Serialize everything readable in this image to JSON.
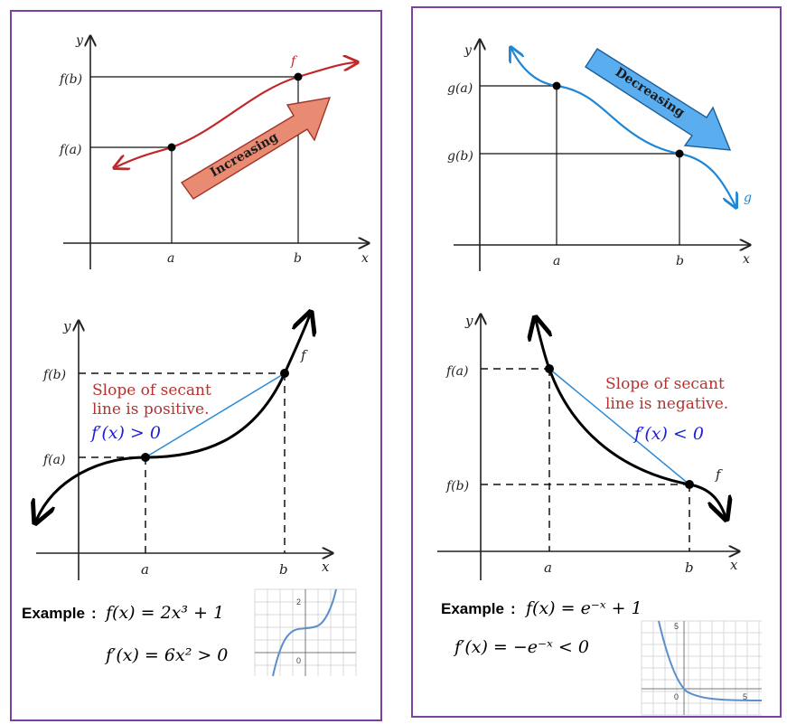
{
  "colors": {
    "frame": "#7a3fa8",
    "increasing_curve": "#c0282b",
    "increasing_arrow": "#e98a73",
    "decreasing_curve": "#1f86d6",
    "decreasing_arrow": "#5aaef0",
    "note_red": "#b5322f",
    "derivative_blue": "#1f1fd6",
    "secant": "#2a8ad6",
    "mini_plot": "#5b8fc9"
  },
  "top_left": {
    "y_axis": "y",
    "x_axis": "x",
    "tick_a": "a",
    "tick_b": "b",
    "fa": "f(a)",
    "fb": "f(b)",
    "curve_name": "f",
    "arrow_text": "Increasing"
  },
  "top_right": {
    "y_axis": "y",
    "x_axis": "x",
    "tick_a": "a",
    "tick_b": "b",
    "ga": "g(a)",
    "gb": "g(b)",
    "curve_name": "g",
    "arrow_text": "Decreasing"
  },
  "mid_left": {
    "y_axis": "y",
    "x_axis": "x",
    "tick_a": "a",
    "tick_b": "b",
    "fa": "f(a)",
    "fb": "f(b)",
    "curve_name": "f",
    "note_line1": "Slope of secant",
    "note_line2": "line is positive.",
    "derivative": "f′(x) > 0"
  },
  "mid_right": {
    "y_axis": "y",
    "x_axis": "x",
    "tick_a": "a",
    "tick_b": "b",
    "fa": "f(a)",
    "fb": "f(b)",
    "curve_name": "f",
    "note_line1": "Slope of secant",
    "note_line2": "line is negative.",
    "derivative": "f′(x) < 0"
  },
  "example_left": {
    "label": "Example",
    "colon": ":",
    "function": "f(x) = 2x³ + 1",
    "derivative": "f′(x) = 6x² > 0",
    "mini_tick_top": "2",
    "mini_tick_origin": "0"
  },
  "example_right": {
    "label": "Example",
    "colon": ":",
    "function": "f(x) = e⁻ˣ + 1",
    "derivative": "f′(x) = −e⁻ˣ < 0",
    "mini_tick_top": "5",
    "mini_tick_origin": "0",
    "mini_tick_right": "5"
  }
}
